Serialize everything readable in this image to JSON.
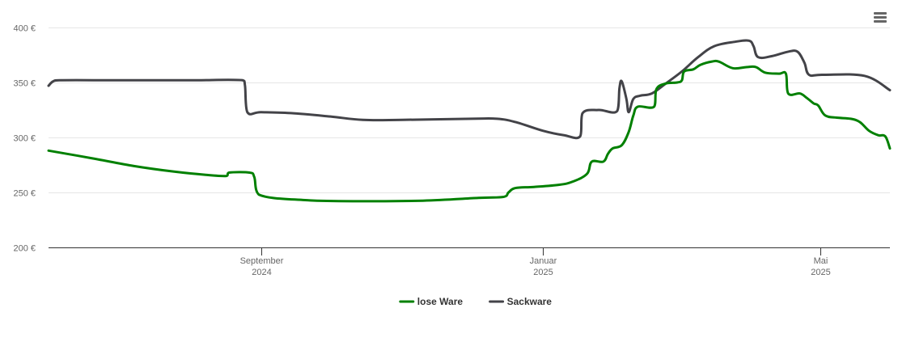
{
  "chart_data": {
    "type": "line",
    "title": "",
    "xlabel": "",
    "ylabel": "",
    "ylim": [
      200,
      400
    ],
    "x_range": [
      "2024-06-01",
      "2025-05-31"
    ],
    "y_ticks": [
      {
        "value": 200,
        "label": "200 €"
      },
      {
        "value": 250,
        "label": "250 €"
      },
      {
        "value": 300,
        "label": "300 €"
      },
      {
        "value": 350,
        "label": "350 €"
      },
      {
        "value": 400,
        "label": "400 €"
      }
    ],
    "x_ticks": [
      {
        "date": "2024-09-01",
        "label_line1": "September",
        "label_line2": "2024"
      },
      {
        "date": "2025-01-01",
        "label_line1": "Januar",
        "label_line2": "2025"
      },
      {
        "date": "2025-05-01",
        "label_line1": "Mai",
        "label_line2": "2025"
      }
    ],
    "grid": "horizontal",
    "legend_position": "bottom-center",
    "series": [
      {
        "name": "lose Ware",
        "color": "#008000",
        "points": [
          [
            "2024-06-01",
            288
          ],
          [
            "2024-06-20",
            281
          ],
          [
            "2024-07-08",
            274
          ],
          [
            "2024-07-25",
            269
          ],
          [
            "2024-08-08",
            266
          ],
          [
            "2024-08-17",
            265
          ],
          [
            "2024-08-18",
            268
          ],
          [
            "2024-08-27",
            268
          ],
          [
            "2024-08-29",
            264
          ],
          [
            "2024-08-31",
            248
          ],
          [
            "2024-09-20",
            243
          ],
          [
            "2024-10-15",
            242
          ],
          [
            "2024-11-10",
            242.5
          ],
          [
            "2024-12-04",
            245
          ],
          [
            "2024-12-15",
            246
          ],
          [
            "2024-12-17",
            250
          ],
          [
            "2024-12-20",
            254
          ],
          [
            "2024-12-28",
            255
          ],
          [
            "2025-01-08",
            257
          ],
          [
            "2025-01-14",
            260
          ],
          [
            "2025-01-20",
            267
          ],
          [
            "2025-01-22",
            278
          ],
          [
            "2025-01-27",
            278
          ],
          [
            "2025-01-29",
            285
          ],
          [
            "2025-01-31",
            290
          ],
          [
            "2025-02-04",
            293
          ],
          [
            "2025-02-07",
            305
          ],
          [
            "2025-02-09",
            320
          ],
          [
            "2025-02-11",
            328
          ],
          [
            "2025-02-18",
            328
          ],
          [
            "2025-02-19",
            344
          ],
          [
            "2025-02-23",
            349
          ],
          [
            "2025-02-28",
            350
          ],
          [
            "2025-03-02",
            352
          ],
          [
            "2025-03-03",
            360
          ],
          [
            "2025-03-07",
            362
          ],
          [
            "2025-03-10",
            366
          ],
          [
            "2025-03-15",
            369
          ],
          [
            "2025-03-18",
            369
          ],
          [
            "2025-03-24",
            363
          ],
          [
            "2025-03-30",
            364
          ],
          [
            "2025-04-03",
            364
          ],
          [
            "2025-04-07",
            359
          ],
          [
            "2025-04-13",
            358
          ],
          [
            "2025-04-16",
            358
          ],
          [
            "2025-04-17",
            340
          ],
          [
            "2025-04-22",
            340
          ],
          [
            "2025-04-25",
            336
          ],
          [
            "2025-04-28",
            331
          ],
          [
            "2025-04-30",
            329
          ],
          [
            "2025-05-03",
            320
          ],
          [
            "2025-05-08",
            318
          ],
          [
            "2025-05-14",
            317
          ],
          [
            "2025-05-18",
            314
          ],
          [
            "2025-05-22",
            306
          ],
          [
            "2025-05-26",
            302
          ],
          [
            "2025-05-29",
            301
          ],
          [
            "2025-05-31",
            290
          ]
        ]
      },
      {
        "name": "Sackware",
        "color": "#434348",
        "points": [
          [
            "2024-06-01",
            347
          ],
          [
            "2024-06-03",
            351
          ],
          [
            "2024-06-06",
            352
          ],
          [
            "2024-07-01",
            352
          ],
          [
            "2024-08-01",
            352
          ],
          [
            "2024-08-24",
            352
          ],
          [
            "2024-08-25",
            347
          ],
          [
            "2024-08-26",
            323
          ],
          [
            "2024-09-01",
            323
          ],
          [
            "2024-09-15",
            322
          ],
          [
            "2024-10-01",
            319
          ],
          [
            "2024-10-15",
            316
          ],
          [
            "2024-11-01",
            316
          ],
          [
            "2024-12-01",
            317
          ],
          [
            "2024-12-12",
            317
          ],
          [
            "2024-12-20",
            314
          ],
          [
            "2025-01-01",
            306
          ],
          [
            "2025-01-10",
            302
          ],
          [
            "2025-01-17",
            301
          ],
          [
            "2025-01-18",
            322
          ],
          [
            "2025-01-25",
            325
          ],
          [
            "2025-02-02",
            324
          ],
          [
            "2025-02-03",
            345
          ],
          [
            "2025-02-04",
            351
          ],
          [
            "2025-02-06",
            335
          ],
          [
            "2025-02-07",
            323
          ],
          [
            "2025-02-09",
            335
          ],
          [
            "2025-02-12",
            338
          ],
          [
            "2025-02-17",
            340
          ],
          [
            "2025-02-23",
            349
          ],
          [
            "2025-03-02",
            360
          ],
          [
            "2025-03-09",
            373
          ],
          [
            "2025-03-16",
            383
          ],
          [
            "2025-03-25",
            387
          ],
          [
            "2025-03-31",
            388
          ],
          [
            "2025-04-02",
            383
          ],
          [
            "2025-04-04",
            373
          ],
          [
            "2025-04-10",
            374
          ],
          [
            "2025-04-17",
            378
          ],
          [
            "2025-04-21",
            378
          ],
          [
            "2025-04-24",
            368
          ],
          [
            "2025-04-26",
            357
          ],
          [
            "2025-05-02",
            357
          ],
          [
            "2025-05-20",
            356
          ],
          [
            "2025-05-31",
            343
          ]
        ]
      }
    ],
    "legend": [
      {
        "label": "lose Ware",
        "color": "#008000"
      },
      {
        "label": "Sackware",
        "color": "#434348"
      }
    ]
  },
  "toolbar": {
    "menu_icon": "hamburger-menu-icon"
  }
}
